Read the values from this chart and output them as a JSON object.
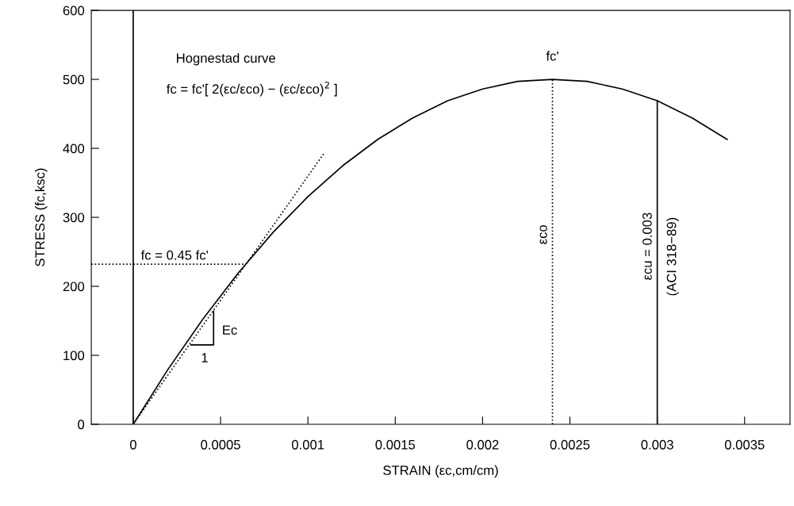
{
  "chart_data": {
    "type": "line",
    "xlabel": "STRAIN (εc,cm/cm)",
    "ylabel": "STRESS (fc,ksc)",
    "xlim": [
      -0.00024,
      0.00376
    ],
    "xticks": [
      0,
      0.0005,
      0.001,
      0.0015,
      0.002,
      0.0025,
      0.003,
      0.0035
    ],
    "ylim": [
      0,
      600
    ],
    "yticks": [
      0,
      100,
      200,
      300,
      400,
      500,
      600
    ],
    "grid": false,
    "legend": false,
    "series": [
      {
        "color": "#000000",
        "line_style": "solid",
        "x": [
          0,
          0.0002,
          0.0004,
          0.0006,
          0.0008,
          0.001,
          0.0012,
          0.0014,
          0.0016,
          0.0018,
          0.002,
          0.0022,
          0.0024,
          0.0026,
          0.0028,
          0.003,
          0.0032,
          0.0034
        ],
        "values": [
          0,
          80,
          153,
          219,
          278,
          330,
          375,
          413,
          444,
          469,
          486,
          497,
          500,
          497,
          486,
          469,
          444,
          413
        ]
      },
      {
        "color": "#000000",
        "line_style": "dotted",
        "x": [
          0,
          0.00109
        ],
        "values": [
          0,
          392
        ]
      },
      {
        "color": "#000000",
        "line_style": "solid",
        "x": [
          0.00033,
          0.00046,
          0.00046
        ],
        "values": [
          115,
          115,
          164
        ]
      }
    ],
    "ref_lines": [
      {
        "axis": "x",
        "value": 0,
        "color": "#000000",
        "line_style": "solid"
      },
      {
        "axis": "y",
        "value": 232,
        "color": "#000000",
        "line_style": "dotted"
      },
      {
        "axis": "x",
        "value": 0.0024,
        "label": "εco",
        "color": "#000000",
        "line_style": "dotted"
      },
      {
        "axis": "x",
        "value": 0.003,
        "label": "εcu = 0.003",
        "color": "#000000",
        "line_style": "solid"
      }
    ],
    "annotations": [
      "Hognestad curve",
      "fc = fc'[ 2(εc/εco) − (εc/εco)$^{2}$ ]",
      "fc'",
      "(ACI 318−89)",
      "Ec",
      "1",
      "fc = 0.45 fc'"
    ]
  }
}
